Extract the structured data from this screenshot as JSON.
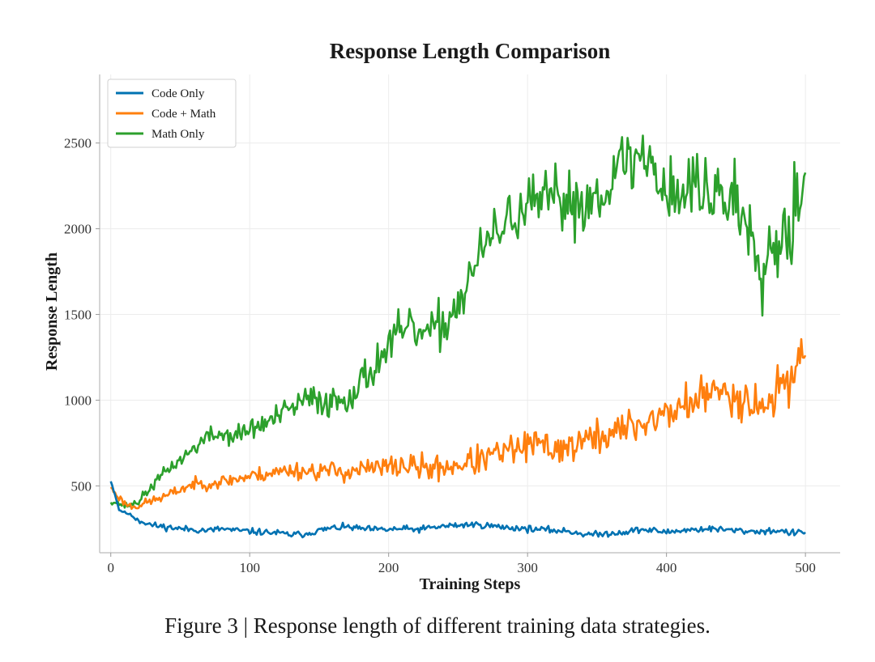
{
  "caption": "Figure 3 | Response length of different training data strategies.",
  "chart_data": {
    "type": "line",
    "title": "Response Length Comparison",
    "xlabel": "Training Steps",
    "ylabel": "Response Length",
    "xlim": [
      -8,
      525
    ],
    "ylim": [
      110,
      2900
    ],
    "xticks": [
      0,
      100,
      200,
      300,
      400,
      500
    ],
    "yticks": [
      500,
      1000,
      1500,
      2000,
      2500
    ],
    "grid": true,
    "legend_position": "top-left",
    "series": [
      {
        "name": "Code Only",
        "color": "#0072b2",
        "points": [
          [
            0,
            530
          ],
          [
            3,
            450
          ],
          [
            6,
            360
          ],
          [
            10,
            345
          ],
          [
            15,
            330
          ],
          [
            20,
            300
          ],
          [
            30,
            270
          ],
          [
            40,
            260
          ],
          [
            50,
            250
          ],
          [
            60,
            245
          ],
          [
            70,
            240
          ],
          [
            80,
            250
          ],
          [
            90,
            240
          ],
          [
            100,
            235
          ],
          [
            110,
            230
          ],
          [
            120,
            225
          ],
          [
            130,
            215
          ],
          [
            140,
            220
          ],
          [
            150,
            240
          ],
          [
            160,
            255
          ],
          [
            170,
            260
          ],
          [
            180,
            250
          ],
          [
            190,
            245
          ],
          [
            200,
            245
          ],
          [
            210,
            250
          ],
          [
            220,
            245
          ],
          [
            230,
            255
          ],
          [
            240,
            265
          ],
          [
            250,
            270
          ],
          [
            260,
            275
          ],
          [
            270,
            270
          ],
          [
            280,
            260
          ],
          [
            290,
            255
          ],
          [
            300,
            250
          ],
          [
            310,
            245
          ],
          [
            320,
            240
          ],
          [
            330,
            235
          ],
          [
            340,
            220
          ],
          [
            350,
            215
          ],
          [
            360,
            225
          ],
          [
            370,
            230
          ],
          [
            380,
            245
          ],
          [
            390,
            240
          ],
          [
            400,
            230
          ],
          [
            410,
            240
          ],
          [
            420,
            245
          ],
          [
            430,
            250
          ],
          [
            440,
            245
          ],
          [
            450,
            240
          ],
          [
            460,
            235
          ],
          [
            470,
            235
          ],
          [
            480,
            240
          ],
          [
            490,
            225
          ],
          [
            500,
            230
          ]
        ]
      },
      {
        "name": "Code + Math",
        "color": "#ff7f0e",
        "points": [
          [
            0,
            490
          ],
          [
            5,
            440
          ],
          [
            10,
            400
          ],
          [
            15,
            380
          ],
          [
            20,
            385
          ],
          [
            30,
            415
          ],
          [
            40,
            440
          ],
          [
            50,
            480
          ],
          [
            60,
            510
          ],
          [
            70,
            515
          ],
          [
            80,
            525
          ],
          [
            90,
            540
          ],
          [
            100,
            555
          ],
          [
            110,
            570
          ],
          [
            120,
            580
          ],
          [
            130,
            595
          ],
          [
            140,
            585
          ],
          [
            150,
            590
          ],
          [
            160,
            585
          ],
          [
            170,
            585
          ],
          [
            180,
            595
          ],
          [
            190,
            600
          ],
          [
            200,
            610
          ],
          [
            210,
            620
          ],
          [
            220,
            610
          ],
          [
            230,
            600
          ],
          [
            240,
            610
          ],
          [
            250,
            625
          ],
          [
            260,
            640
          ],
          [
            270,
            660
          ],
          [
            280,
            690
          ],
          [
            290,
            710
          ],
          [
            300,
            730
          ],
          [
            310,
            740
          ],
          [
            320,
            720
          ],
          [
            330,
            730
          ],
          [
            340,
            760
          ],
          [
            350,
            780
          ],
          [
            360,
            810
          ],
          [
            370,
            830
          ],
          [
            380,
            860
          ],
          [
            390,
            890
          ],
          [
            400,
            920
          ],
          [
            410,
            960
          ],
          [
            420,
            1000
          ],
          [
            430,
            1030
          ],
          [
            440,
            1050
          ],
          [
            450,
            1030
          ],
          [
            460,
            1000
          ],
          [
            470,
            960
          ],
          [
            480,
            1050
          ],
          [
            490,
            1150
          ],
          [
            500,
            1300
          ]
        ]
      },
      {
        "name": "Math Only",
        "color": "#2ca02c",
        "points": [
          [
            0,
            410
          ],
          [
            5,
            400
          ],
          [
            10,
            385
          ],
          [
            15,
            390
          ],
          [
            20,
            410
          ],
          [
            30,
            500
          ],
          [
            40,
            590
          ],
          [
            50,
            650
          ],
          [
            60,
            720
          ],
          [
            70,
            790
          ],
          [
            80,
            800
          ],
          [
            90,
            790
          ],
          [
            100,
            830
          ],
          [
            110,
            860
          ],
          [
            120,
            900
          ],
          [
            130,
            950
          ],
          [
            140,
            1000
          ],
          [
            150,
            1000
          ],
          [
            160,
            990
          ],
          [
            170,
            1020
          ],
          [
            180,
            1100
          ],
          [
            190,
            1200
          ],
          [
            200,
            1320
          ],
          [
            210,
            1400
          ],
          [
            220,
            1400
          ],
          [
            230,
            1380
          ],
          [
            240,
            1450
          ],
          [
            250,
            1560
          ],
          [
            260,
            1750
          ],
          [
            270,
            1900
          ],
          [
            280,
            2000
          ],
          [
            290,
            2080
          ],
          [
            300,
            2120
          ],
          [
            310,
            2150
          ],
          [
            320,
            2170
          ],
          [
            330,
            2160
          ],
          [
            340,
            2150
          ],
          [
            350,
            2200
          ],
          [
            360,
            2300
          ],
          [
            370,
            2380
          ],
          [
            380,
            2420
          ],
          [
            390,
            2380
          ],
          [
            400,
            2230
          ],
          [
            410,
            2200
          ],
          [
            420,
            2250
          ],
          [
            430,
            2220
          ],
          [
            440,
            2200
          ],
          [
            450,
            2150
          ],
          [
            460,
            2020
          ],
          [
            470,
            1820
          ],
          [
            480,
            1950
          ],
          [
            490,
            2050
          ],
          [
            500,
            2370
          ]
        ]
      }
    ]
  }
}
